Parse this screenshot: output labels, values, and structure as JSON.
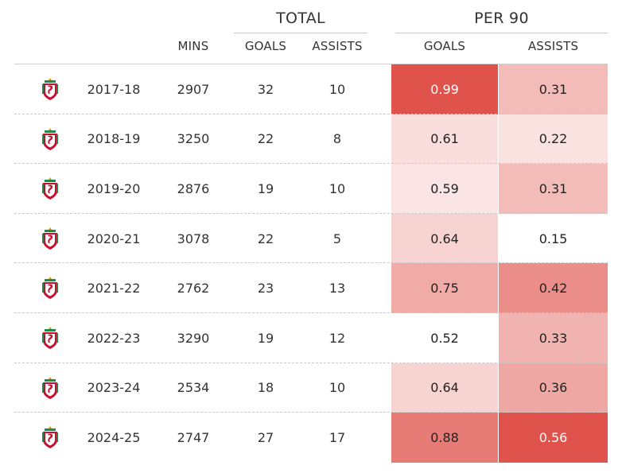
{
  "header": {
    "total_label": "TOTAL",
    "per90_label": "PER 90",
    "columns": {
      "mins": "MINS",
      "total_goals": "GOALS",
      "total_assists": "ASSISTS",
      "per90_goals": "GOALS",
      "per90_assists": "ASSISTS"
    }
  },
  "chart_data": {
    "type": "table",
    "columns": [
      "",
      "",
      "MINS",
      "GOALS",
      "ASSISTS",
      "GOALS",
      "ASSISTS"
    ],
    "rows": [
      {
        "season": "2017-18",
        "mins": "2907",
        "goals": "32",
        "assists": "10",
        "goals_p90": "0.99",
        "assists_p90": "0.31",
        "crest": "liverpool-crest-icon"
      },
      {
        "season": "2018-19",
        "mins": "3250",
        "goals": "22",
        "assists": "8",
        "goals_p90": "0.61",
        "assists_p90": "0.22",
        "crest": "liverpool-crest-icon"
      },
      {
        "season": "2019-20",
        "mins": "2876",
        "goals": "19",
        "assists": "10",
        "goals_p90": "0.59",
        "assists_p90": "0.31",
        "crest": "liverpool-crest-icon"
      },
      {
        "season": "2020-21",
        "mins": "3078",
        "goals": "22",
        "assists": "5",
        "goals_p90": "0.64",
        "assists_p90": "0.15",
        "crest": "liverpool-crest-icon"
      },
      {
        "season": "2021-22",
        "mins": "2762",
        "goals": "23",
        "assists": "13",
        "goals_p90": "0.75",
        "assists_p90": "0.42",
        "crest": "liverpool-crest-icon"
      },
      {
        "season": "2022-23",
        "mins": "3290",
        "goals": "19",
        "assists": "12",
        "goals_p90": "0.52",
        "assists_p90": "0.33",
        "crest": "liverpool-crest-icon"
      },
      {
        "season": "2023-24",
        "mins": "2534",
        "goals": "18",
        "assists": "10",
        "goals_p90": "0.64",
        "assists_p90": "0.36",
        "crest": "liverpool-crest-icon"
      },
      {
        "season": "2024-25",
        "mins": "2747",
        "goals": "27",
        "assists": "17",
        "goals_p90": "0.88",
        "assists_p90": "0.56",
        "crest": "liverpool-crest-icon"
      }
    ],
    "heat_colors": {
      "low": "#ffffff",
      "high": "#e0534c",
      "text_dark": "#222222",
      "text_light": "#ffffff"
    }
  }
}
